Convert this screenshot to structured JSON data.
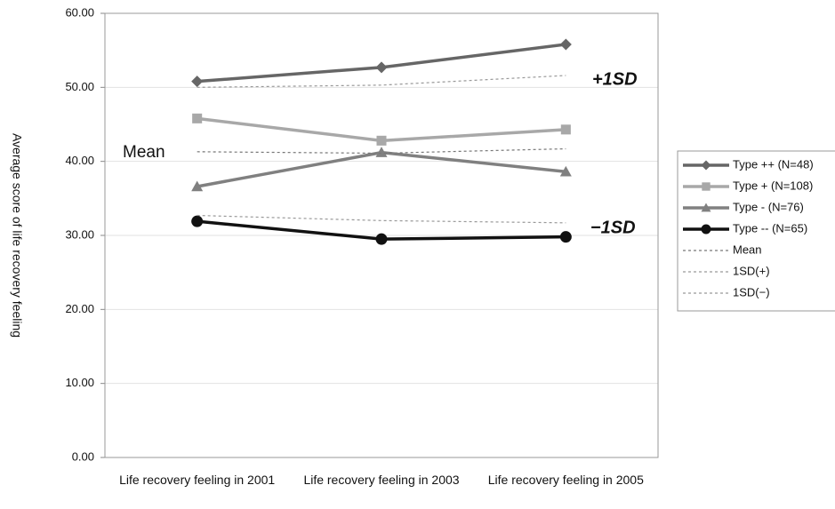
{
  "chart_data": {
    "type": "line",
    "y_label": "Average score of life recovery feeling",
    "categories": [
      "Life recovery feeling in 2001",
      "Life recovery feeling in 2003",
      "Life recovery feeling in 2005"
    ],
    "series": [
      {
        "name": "Type ++ (N=48)",
        "color": "#666666",
        "marker": "diamond",
        "values": [
          50.8,
          52.7,
          55.8
        ]
      },
      {
        "name": "Type + (N=108)",
        "color": "#a8a8a8",
        "marker": "square",
        "values": [
          45.8,
          42.8,
          44.3
        ]
      },
      {
        "name": "Type - (N=76)",
        "color": "#808080",
        "marker": "triangle",
        "values": [
          36.6,
          41.2,
          38.6
        ]
      },
      {
        "name": "Type -- (N=65)",
        "color": "#111111",
        "marker": "circle",
        "values": [
          31.9,
          29.5,
          29.8
        ]
      },
      {
        "name": "Mean",
        "color": "#777777",
        "dashed": true,
        "values": [
          41.3,
          41.1,
          41.7
        ]
      },
      {
        "name": "1SD(+)",
        "color": "#999999",
        "dashed": true,
        "values": [
          50.0,
          50.3,
          51.6
        ]
      },
      {
        "name": "1SD(−)",
        "color": "#999999",
        "dashed": true,
        "values": [
          32.7,
          32.0,
          31.7
        ]
      }
    ],
    "annotations": [
      "+1SD",
      "−1SD",
      "Mean"
    ],
    "ylim": [
      0,
      60
    ],
    "yticks": [
      {
        "value": 0,
        "label": "0.00"
      },
      {
        "value": 10,
        "label": "10.00"
      },
      {
        "value": 20,
        "label": "20.00"
      },
      {
        "value": 30,
        "label": "30.00"
      },
      {
        "value": 40,
        "label": "40.00"
      },
      {
        "value": 50,
        "label": "50.00"
      },
      {
        "value": 60,
        "label": "60.00"
      }
    ],
    "grid": true,
    "legend": "right"
  }
}
